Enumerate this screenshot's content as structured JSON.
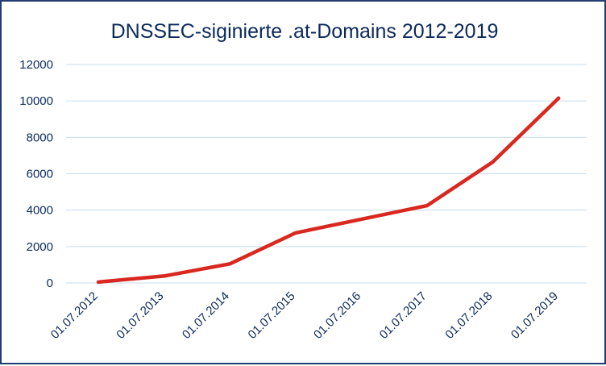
{
  "chart_data": {
    "type": "line",
    "title": "DNSSEC-siginierte .at-Domains 2012-2019",
    "xlabel": "",
    "ylabel": "",
    "categories": [
      "01.07.2012",
      "01.07.2013",
      "01.07.2014",
      "01.07.2015",
      "01.07.2016",
      "01.07.2017",
      "01.07.2018",
      "01.07.2019"
    ],
    "series": [
      {
        "values": [
          50,
          380,
          1050,
          2750,
          3500,
          4250,
          6650,
          10150
        ],
        "color": "#d9281f"
      }
    ],
    "yticks": [
      "0",
      "2000",
      "4000",
      "6000",
      "8000",
      "10000",
      "12000"
    ],
    "ylim": [
      0,
      12000
    ],
    "grid": "horizontal",
    "legend": "none",
    "colors": {
      "border": "#1f3d6e",
      "text": "#0b2a5b",
      "grid": "#c9dcee"
    }
  }
}
